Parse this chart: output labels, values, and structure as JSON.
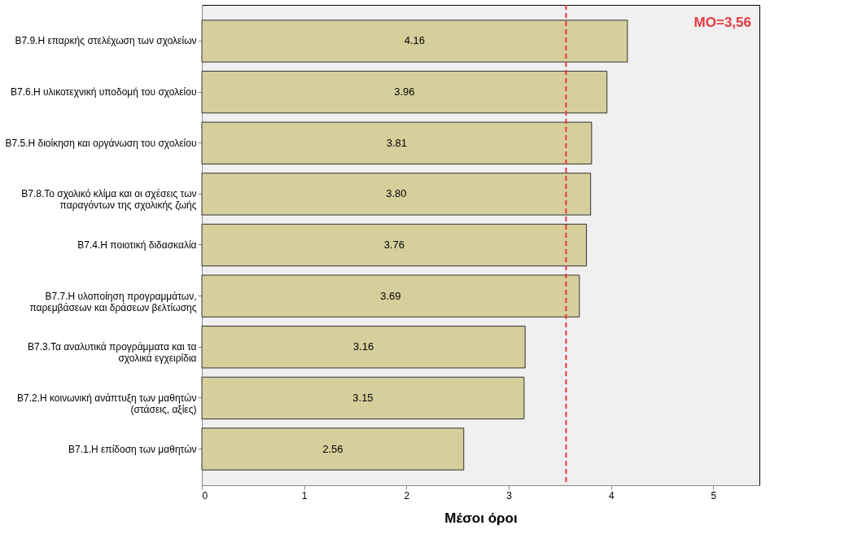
{
  "chart_data": {
    "type": "bar",
    "orientation": "horizontal",
    "xlabel": "Μέσοι όροι",
    "categories": [
      "B7.9.Η επαρκής στελέχωση των σχολείων",
      "B7.6.Η υλικοτεχνική υποδομή του σχολείου",
      "B7.5.Η διοίκηση και οργάνωση του σχολείου",
      "B7.8.Το σχολικό κλίμα και οι σχέσεις των\nπαραγόντων της σχολικής ζωής",
      "B7.4.Η ποιοτική διδασκαλία",
      "B7.7.Η υλοποίηση προγραμμάτων,\nπαρεμβάσεων και δράσεων βελτίωσης",
      "B7.3.Τα αναλυτικά προγράμματα και τα\nσχολικά εγχειρίδια",
      "B7.2.Η κοινωνική ανάπτυξη των μαθητών\n(στάσεις, αξίες)",
      "B7.1.Η επίδοση των μαθητών"
    ],
    "values": [
      4.16,
      3.96,
      3.81,
      3.8,
      3.76,
      3.69,
      3.16,
      3.15,
      2.56
    ],
    "value_labels": [
      "4.16",
      "3.96",
      "3.81",
      "3.80",
      "3.76",
      "3.69",
      "3.16",
      "3.15",
      "2.56"
    ],
    "color": "#d6cf9c",
    "xlim": [
      0,
      5.45
    ],
    "xticks": [
      0,
      1,
      2,
      3,
      4,
      5
    ],
    "grid": false,
    "ref_lines": [
      {
        "axis": "x",
        "value": 3.56,
        "label": "ΜΟ=3,56",
        "color": "#e8383d",
        "line_style": "dashed"
      }
    ]
  }
}
